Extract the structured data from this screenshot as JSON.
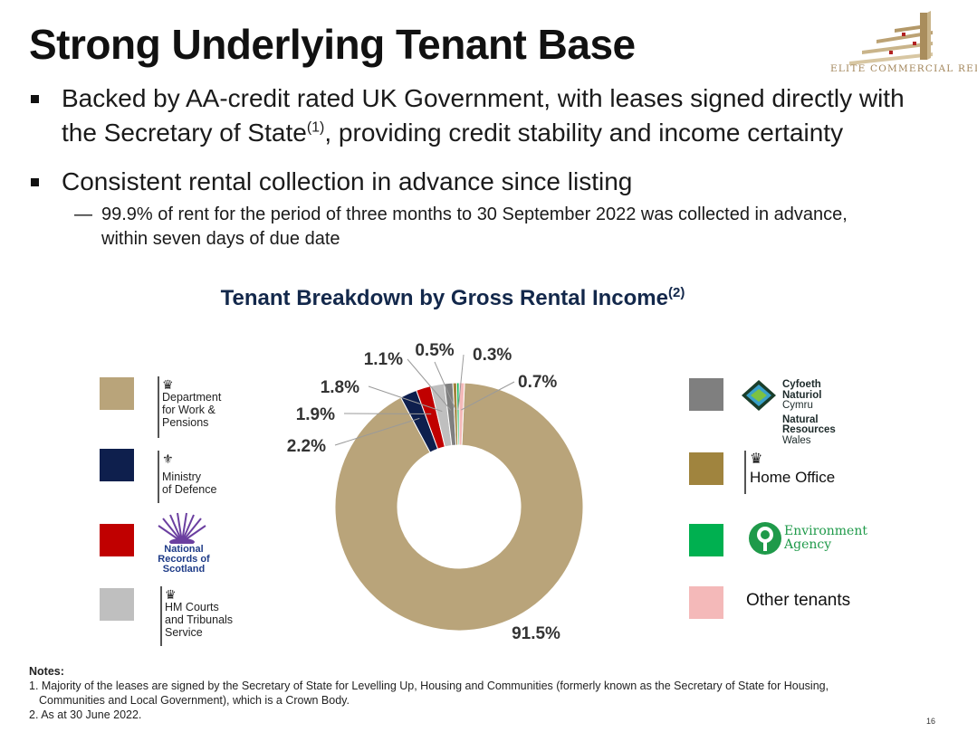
{
  "slide": {
    "title": "Strong Underlying Tenant Base",
    "brand": "ELITE COMMERCIAL REIT",
    "bullets": [
      {
        "line1": "Backed by AA-credit rated UK Government, with leases signed directly with",
        "line2_pre": "the Secretary of State",
        "line2_sup": "(1)",
        "line2_post": ", providing credit stability and income certainty"
      },
      {
        "line1": "Consistent rental collection in advance since listing"
      }
    ],
    "sub_dash": "—",
    "sub_bullet": {
      "line1": "99.9% of rent for the period of three months to 30 September 2022 was collected in advance,",
      "line2": "within seven days of due date"
    },
    "notes": {
      "header": "Notes:",
      "note1_line1": "1. Majority of the leases are signed by the Secretary of State for Levelling Up, Housing and Communities (formerly known as the Secretary of State for Housing,",
      "note1_line2": "Communities and Local Government), which is a Crown Body.",
      "note2": "2. As at 30 June 2022."
    },
    "page_number": "16"
  },
  "legend": {
    "dwp": {
      "line1": "Department",
      "line2": "for Work &",
      "line3": "Pensions",
      "color": "#b9a47a"
    },
    "mod": {
      "line1": "Ministry",
      "line2": "of Defence",
      "color": "#0e1f4d"
    },
    "nrs": {
      "line1": "National",
      "line2": "Records of",
      "line3": "Scotland",
      "color": "#c00000"
    },
    "hmcts": {
      "line1": "HM Courts",
      "line2": "and Tribunals",
      "line3": "Service",
      "color": "#bfbfbf"
    },
    "nrw": {
      "line1": "Cyfoeth",
      "line2": "Naturiol",
      "line3": "Cymru",
      "line4": "Natural",
      "line5": "Resources",
      "line6": "Wales",
      "color": "#7f7f7f"
    },
    "home_office": {
      "label": "Home Office",
      "color": "#a0843e"
    },
    "env_agency": {
      "line1": "Environment",
      "line2": "Agency",
      "color": "#00b050"
    },
    "other": {
      "label": "Other tenants",
      "color": "#f4b9b9"
    }
  },
  "chart_data": {
    "type": "pie",
    "title": "Tenant Breakdown by Gross Rental Income",
    "title_sup": "(2)",
    "donut": true,
    "slices": [
      {
        "name": "Department for Work & Pensions",
        "value": 91.5,
        "label": "91.5%",
        "color": "#b9a47a"
      },
      {
        "name": "Ministry of Defence",
        "value": 2.2,
        "label": "2.2%",
        "color": "#0e1f4d"
      },
      {
        "name": "National Records of Scotland",
        "value": 1.9,
        "label": "1.9%",
        "color": "#c00000"
      },
      {
        "name": "HM Courts and Tribunals Service",
        "value": 1.8,
        "label": "1.8%",
        "color": "#bfbfbf"
      },
      {
        "name": "Natural Resources Wales",
        "value": 1.1,
        "label": "1.1%",
        "color": "#7f7f7f"
      },
      {
        "name": "Home Office",
        "value": 0.5,
        "label": "0.5%",
        "color": "#a0843e"
      },
      {
        "name": "Environment Agency",
        "value": 0.3,
        "label": "0.3%",
        "color": "#00b050"
      },
      {
        "name": "Other tenants",
        "value": 0.7,
        "label": "0.7%",
        "color": "#f4b9b9"
      }
    ]
  }
}
